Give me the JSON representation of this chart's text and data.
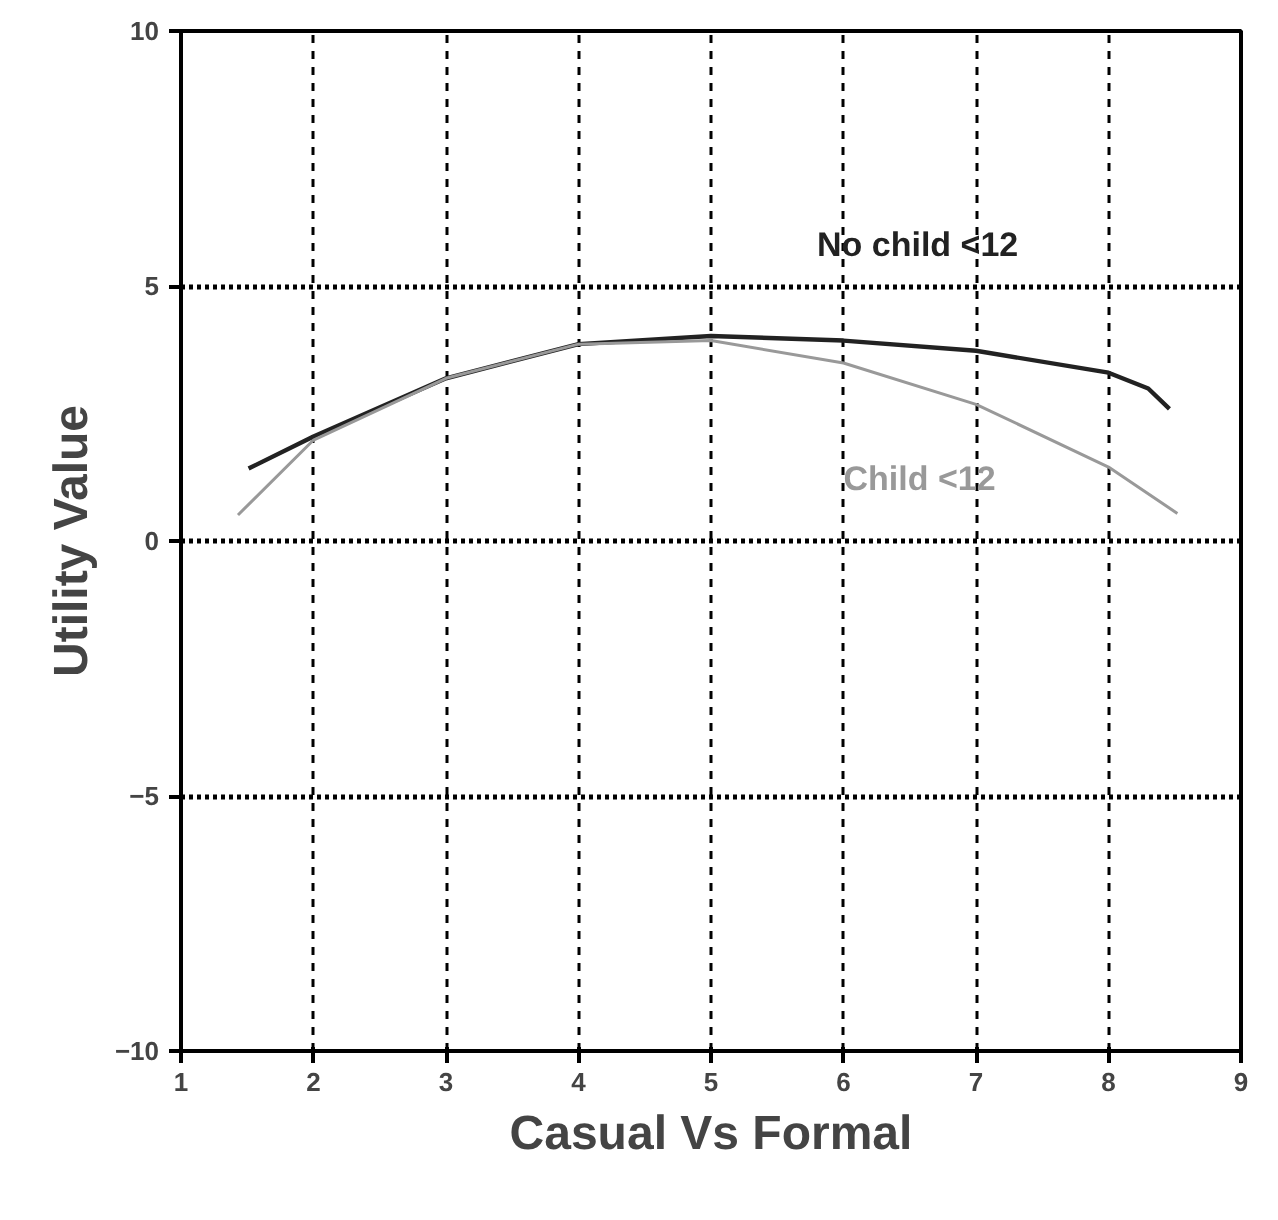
{
  "chart_data": {
    "type": "line",
    "xlabel": "Casual Vs Formal",
    "ylabel": "Utility Value",
    "xlim": [
      1,
      9
    ],
    "xticks": [
      1,
      2,
      3,
      4,
      5,
      6,
      7,
      8,
      9
    ],
    "ylim": [
      -10,
      10
    ],
    "yticks": [
      -10,
      -5,
      0,
      5,
      10
    ],
    "grid": true,
    "marker": "none",
    "line_style": "solid",
    "series": [
      {
        "name": "No child <12",
        "color": "#222222",
        "x": [
          1.51,
          2,
          3,
          4,
          5,
          6,
          7,
          8,
          8.3,
          8.46
        ],
        "values": [
          1.42,
          2.05,
          3.19,
          3.86,
          4.02,
          3.93,
          3.73,
          3.3,
          2.99,
          2.59
        ]
      },
      {
        "name": "Child <12",
        "color": "#999999",
        "x": [
          1.43,
          2,
          3,
          4,
          5,
          6,
          7,
          8,
          8.52
        ],
        "values": [
          0.51,
          1.98,
          3.19,
          3.86,
          3.93,
          3.49,
          2.68,
          1.45,
          0.54
        ]
      }
    ]
  }
}
